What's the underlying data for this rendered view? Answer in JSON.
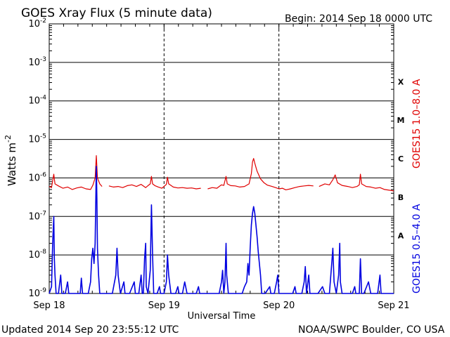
{
  "chart_data": {
    "type": "line",
    "title": "GOES Xray Flux (5 minute data)",
    "begin_label": "Begin:  2014 Sep 18 0000 UTC",
    "xlabel": "Universal Time",
    "ylabel_main": "Watts m",
    "ylabel_exp": "-2",
    "y_scale": "log",
    "ylim": [
      1e-09,
      0.01
    ],
    "xlim_days": [
      0,
      3
    ],
    "x_ticks": [
      {
        "day": 0,
        "label": "Sep 18"
      },
      {
        "day": 1,
        "label": "Sep 19"
      },
      {
        "day": 2,
        "label": "Sep 20"
      },
      {
        "day": 3,
        "label": "Sep 21"
      }
    ],
    "y_ticks": [
      {
        "exp": -9,
        "label": "-9"
      },
      {
        "exp": -8,
        "label": "-8"
      },
      {
        "exp": -7,
        "label": "-7"
      },
      {
        "exp": -6,
        "label": "-6"
      },
      {
        "exp": -5,
        "label": "-5"
      },
      {
        "exp": -4,
        "label": "-4"
      },
      {
        "exp": -3,
        "label": "-3"
      },
      {
        "exp": -2,
        "label": "-2"
      }
    ],
    "flare_classes": [
      {
        "label": "A",
        "exp": -7.5
      },
      {
        "label": "B",
        "exp": -6.5
      },
      {
        "label": "C",
        "exp": -5.5
      },
      {
        "label": "M",
        "exp": -4.5
      },
      {
        "label": "X",
        "exp": -3.5
      }
    ],
    "grid": true,
    "series": [
      {
        "name": "GOES15 1.0–8.0 A",
        "color": "#e00000",
        "points": [
          [
            0.0,
            6e-07
          ],
          [
            0.02,
            5.6e-07
          ],
          [
            0.04,
            1.25e-06
          ],
          [
            0.05,
            7e-07
          ],
          [
            0.08,
            6.2e-07
          ],
          [
            0.12,
            5.4e-07
          ],
          [
            0.16,
            5.8e-07
          ],
          [
            0.2,
            5e-07
          ],
          [
            0.24,
            5.5e-07
          ],
          [
            0.28,
            5.8e-07
          ],
          [
            0.32,
            5.2e-07
          ],
          [
            0.36,
            5e-07
          ],
          [
            0.38,
            6.5e-07
          ],
          [
            0.4,
            1e-06
          ],
          [
            0.41,
            3.8e-06
          ],
          [
            0.42,
            1e-06
          ],
          [
            0.44,
            7e-07
          ],
          [
            0.46,
            6e-07
          ],
          null,
          [
            0.52,
            6.2e-07
          ],
          [
            0.56,
            5.8e-07
          ],
          [
            0.6,
            6e-07
          ],
          [
            0.64,
            5.6e-07
          ],
          [
            0.68,
            6.3e-07
          ],
          [
            0.72,
            6.6e-07
          ],
          [
            0.76,
            6e-07
          ],
          [
            0.8,
            6.8e-07
          ],
          [
            0.84,
            5.6e-07
          ],
          [
            0.86,
            6.3e-07
          ],
          [
            0.88,
            7e-07
          ],
          [
            0.89,
            1.1e-06
          ],
          [
            0.9,
            7e-07
          ],
          [
            0.92,
            6.3e-07
          ],
          [
            0.95,
            5.8e-07
          ],
          [
            0.98,
            5.4e-07
          ],
          [
            1.0,
            6e-07
          ],
          [
            1.02,
            6.8e-07
          ],
          [
            1.03,
            1.05e-06
          ],
          [
            1.04,
            7e-07
          ],
          [
            1.08,
            5.8e-07
          ],
          [
            1.12,
            5.5e-07
          ],
          [
            1.16,
            5.6e-07
          ],
          [
            1.2,
            5.4e-07
          ],
          [
            1.24,
            5.5e-07
          ],
          [
            1.28,
            5.2e-07
          ],
          [
            1.32,
            5.4e-07
          ],
          null,
          [
            1.38,
            5.2e-07
          ],
          [
            1.42,
            5.6e-07
          ],
          [
            1.46,
            5.4e-07
          ],
          [
            1.48,
            6e-07
          ],
          [
            1.5,
            6.6e-07
          ],
          [
            1.52,
            6.4e-07
          ],
          [
            1.54,
            1.1e-06
          ],
          [
            1.55,
            7e-07
          ],
          [
            1.58,
            6.3e-07
          ],
          [
            1.62,
            6.2e-07
          ],
          [
            1.66,
            5.8e-07
          ],
          [
            1.7,
            6e-07
          ],
          [
            1.74,
            7e-07
          ],
          [
            1.76,
            1.3e-06
          ],
          [
            1.77,
            2.6e-06
          ],
          [
            1.78,
            3.2e-06
          ],
          [
            1.79,
            2.4e-06
          ],
          [
            1.81,
            1.5e-06
          ],
          [
            1.84,
            9.5e-07
          ],
          [
            1.87,
            7.5e-07
          ],
          [
            1.9,
            6.5e-07
          ],
          [
            1.94,
            6e-07
          ],
          [
            1.98,
            5.5e-07
          ],
          [
            2.0,
            5.2e-07
          ],
          [
            2.03,
            5.4e-07
          ],
          [
            2.06,
            4.9e-07
          ],
          [
            2.1,
            5.2e-07
          ],
          [
            2.14,
            5.6e-07
          ],
          [
            2.18,
            6e-07
          ],
          [
            2.22,
            6.2e-07
          ],
          [
            2.26,
            6.4e-07
          ],
          [
            2.3,
            6.2e-07
          ],
          null,
          [
            2.35,
            6e-07
          ],
          [
            2.4,
            7e-07
          ],
          [
            2.44,
            6.6e-07
          ],
          [
            2.47,
            9e-07
          ],
          [
            2.49,
            1.2e-06
          ],
          [
            2.51,
            7.5e-07
          ],
          [
            2.55,
            6.4e-07
          ],
          [
            2.6,
            6e-07
          ],
          [
            2.64,
            5.6e-07
          ],
          [
            2.68,
            6e-07
          ],
          [
            2.7,
            6.6e-07
          ],
          [
            2.71,
            1.25e-06
          ],
          [
            2.72,
            7e-07
          ],
          [
            2.76,
            6e-07
          ],
          [
            2.8,
            5.8e-07
          ],
          [
            2.84,
            5.4e-07
          ],
          [
            2.88,
            5.6e-07
          ],
          [
            2.92,
            5e-07
          ],
          [
            2.96,
            4.8e-07
          ],
          [
            3.0,
            4.6e-07
          ]
        ]
      },
      {
        "name": "GOES15 0.5–4.0 A",
        "color": "#0000e0",
        "points": [
          [
            0.0,
            1e-09
          ],
          [
            0.02,
            1.5e-09
          ],
          [
            0.03,
            2e-08
          ],
          [
            0.04,
            1e-07
          ],
          [
            0.045,
            8e-09
          ],
          [
            0.05,
            3e-09
          ],
          [
            0.06,
            1e-09
          ],
          [
            0.08,
            1e-09
          ],
          [
            0.1,
            3e-09
          ],
          [
            0.11,
            1e-09
          ],
          [
            0.14,
            1e-09
          ],
          [
            0.16,
            2e-09
          ],
          [
            0.17,
            1e-09
          ],
          [
            0.2,
            1e-09
          ],
          [
            0.24,
            1e-09
          ],
          [
            0.27,
            1e-09
          ],
          [
            0.28,
            2.5e-09
          ],
          [
            0.29,
            1e-09
          ],
          [
            0.34,
            1e-09
          ],
          [
            0.36,
            2e-09
          ],
          [
            0.37,
            8e-09
          ],
          [
            0.38,
            1.5e-08
          ],
          [
            0.39,
            6e-09
          ],
          [
            0.4,
            2e-08
          ],
          [
            0.41,
            2e-06
          ],
          [
            0.415,
            3e-07
          ],
          [
            0.42,
            1.5e-08
          ],
          [
            0.43,
            3e-09
          ],
          [
            0.44,
            1e-09
          ],
          [
            0.5,
            1e-09
          ],
          [
            0.55,
            1e-09
          ],
          [
            0.58,
            3e-09
          ],
          [
            0.59,
            1.5e-08
          ],
          [
            0.6,
            3e-09
          ],
          [
            0.62,
            1e-09
          ],
          [
            0.65,
            2e-09
          ],
          [
            0.66,
            1e-09
          ],
          [
            0.7,
            1e-09
          ],
          [
            0.74,
            2e-09
          ],
          [
            0.75,
            1e-09
          ],
          [
            0.78,
            1e-09
          ],
          [
            0.8,
            3e-09
          ],
          [
            0.81,
            1e-09
          ],
          [
            0.82,
            1e-09
          ],
          [
            0.83,
            8e-09
          ],
          [
            0.84,
            2e-08
          ],
          [
            0.845,
            1.5e-09
          ],
          [
            0.86,
            1e-09
          ],
          [
            0.88,
            4e-09
          ],
          [
            0.89,
            2e-07
          ],
          [
            0.9,
            1e-08
          ],
          [
            0.91,
            1e-09
          ],
          [
            0.94,
            1e-09
          ],
          [
            0.96,
            1.5e-09
          ],
          [
            0.97,
            1e-09
          ],
          [
            1.0,
            1e-09
          ],
          [
            1.02,
            2e-09
          ],
          [
            1.03,
            1e-08
          ],
          [
            1.04,
            3e-09
          ],
          [
            1.06,
            1e-09
          ],
          [
            1.1,
            1e-09
          ],
          [
            1.12,
            1.5e-09
          ],
          [
            1.13,
            1e-09
          ],
          [
            1.16,
            1e-09
          ],
          [
            1.18,
            2e-09
          ],
          [
            1.2,
            1e-09
          ],
          [
            1.24,
            1e-09
          ],
          [
            1.28,
            1e-09
          ],
          [
            1.3,
            1.5e-09
          ],
          [
            1.31,
            1e-09
          ],
          [
            1.34,
            1e-09
          ],
          [
            1.38,
            1e-09
          ],
          [
            1.42,
            1e-09
          ],
          [
            1.46,
            1e-09
          ],
          [
            1.48,
            1e-09
          ],
          [
            1.5,
            2e-09
          ],
          [
            1.51,
            4e-09
          ],
          [
            1.52,
            1e-09
          ],
          [
            1.53,
            2e-09
          ],
          [
            1.54,
            2e-08
          ],
          [
            1.545,
            3e-09
          ],
          [
            1.56,
            1e-09
          ],
          [
            1.6,
            1e-09
          ],
          [
            1.64,
            1e-09
          ],
          [
            1.68,
            1e-09
          ],
          [
            1.7,
            1.5e-09
          ],
          [
            1.72,
            2e-09
          ],
          [
            1.73,
            6e-09
          ],
          [
            1.74,
            3e-09
          ],
          [
            1.75,
            1.5e-08
          ],
          [
            1.76,
            6e-08
          ],
          [
            1.77,
            1.2e-07
          ],
          [
            1.78,
            1.8e-07
          ],
          [
            1.79,
            1.2e-07
          ],
          [
            1.8,
            6e-08
          ],
          [
            1.81,
            3e-08
          ],
          [
            1.82,
            1.2e-08
          ],
          [
            1.83,
            6e-09
          ],
          [
            1.84,
            3e-09
          ],
          [
            1.85,
            1e-09
          ],
          [
            1.88,
            1e-09
          ],
          [
            1.92,
            1.5e-09
          ],
          [
            1.93,
            1e-09
          ],
          [
            1.96,
            1e-09
          ],
          [
            1.98,
            2e-09
          ],
          [
            1.99,
            3e-09
          ],
          [
            2.0,
            1e-09
          ],
          [
            2.02,
            1e-09
          ],
          [
            2.06,
            1e-09
          ],
          [
            2.1,
            1e-09
          ],
          [
            2.12,
            1e-09
          ],
          [
            2.14,
            1.5e-09
          ],
          [
            2.15,
            1e-09
          ],
          [
            2.2,
            1e-09
          ],
          [
            2.22,
            2e-09
          ],
          [
            2.23,
            5e-09
          ],
          [
            2.24,
            1e-09
          ],
          [
            2.26,
            3e-09
          ],
          [
            2.27,
            1e-09
          ],
          [
            2.3,
            1e-09
          ],
          [
            2.34,
            1e-09
          ],
          [
            2.38,
            1.5e-09
          ],
          [
            2.4,
            1e-09
          ],
          [
            2.44,
            1e-09
          ],
          [
            2.46,
            6e-09
          ],
          [
            2.47,
            1.5e-08
          ],
          [
            2.48,
            2e-09
          ],
          [
            2.5,
            1e-09
          ],
          [
            2.52,
            3e-09
          ],
          [
            2.53,
            2e-08
          ],
          [
            2.535,
            2e-09
          ],
          [
            2.55,
            1e-09
          ],
          [
            2.6,
            1e-09
          ],
          [
            2.64,
            1e-09
          ],
          [
            2.66,
            1.5e-09
          ],
          [
            2.67,
            1e-09
          ],
          [
            2.7,
            1e-09
          ],
          [
            2.71,
            8e-09
          ],
          [
            2.72,
            1e-09
          ],
          [
            2.74,
            1e-09
          ],
          [
            2.78,
            2e-09
          ],
          [
            2.8,
            1e-09
          ],
          [
            2.84,
            1e-09
          ],
          [
            2.86,
            1e-09
          ],
          [
            2.88,
            3e-09
          ],
          [
            2.89,
            1e-09
          ],
          [
            2.92,
            1e-09
          ],
          [
            2.96,
            1e-09
          ],
          [
            2.98,
            1e-09
          ],
          [
            3.0,
            1e-09
          ]
        ]
      }
    ],
    "right_labels": {
      "red": "GOES15 1.0–8.0 A",
      "blue": "GOES15 0.5–4.0 A"
    }
  },
  "footer": {
    "updated": "Updated 2014 Sep 20 23:55:12 UTC",
    "credit": "NOAA/SWPC Boulder, CO USA"
  }
}
